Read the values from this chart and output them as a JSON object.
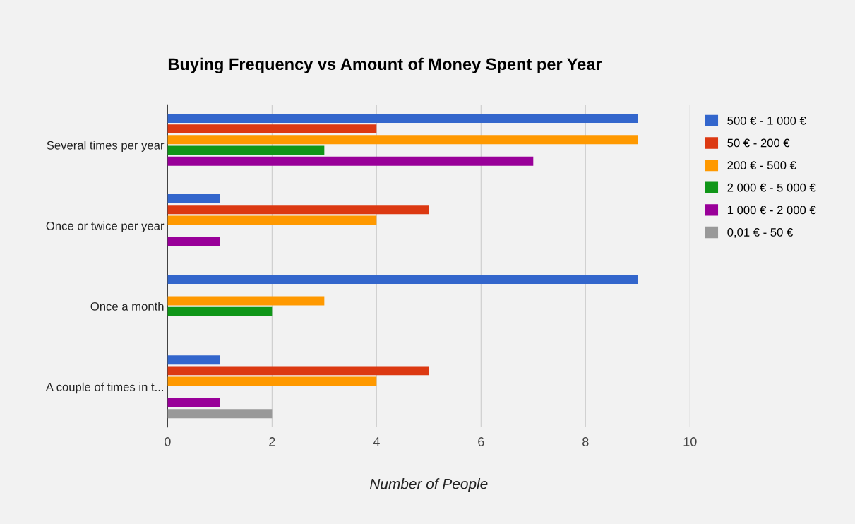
{
  "chart_data": {
    "type": "bar",
    "orientation": "horizontal",
    "title": "Buying Frequency vs Amount of Money Spent per Year",
    "xlabel": "Number of People",
    "categories": [
      "Several times per year",
      "Once or twice per year",
      "Once a month",
      "A couple of times in t..."
    ],
    "series": [
      {
        "name": "500 € - 1 000 €",
        "color": "#3366cc",
        "values": [
          9,
          1,
          9,
          1
        ]
      },
      {
        "name": "50 € - 200 €",
        "color": "#dc3912",
        "values": [
          4,
          5,
          null,
          5
        ]
      },
      {
        "name": "200 € - 500 €",
        "color": "#ff9900",
        "values": [
          9,
          4,
          3,
          4
        ]
      },
      {
        "name": "2 000 € - 5 000 €",
        "color": "#109618",
        "values": [
          3,
          null,
          2,
          null
        ]
      },
      {
        "name": "1 000 € - 2 000 €",
        "color": "#990099",
        "values": [
          7,
          1,
          null,
          1
        ]
      },
      {
        "name": "0,01 € - 50 €",
        "color": "#999999",
        "values": [
          null,
          null,
          null,
          2
        ]
      }
    ],
    "xlim": [
      0,
      10
    ],
    "xticks": [
      0,
      2,
      4,
      6,
      8,
      10
    ],
    "grid": "x",
    "legend": "right"
  }
}
